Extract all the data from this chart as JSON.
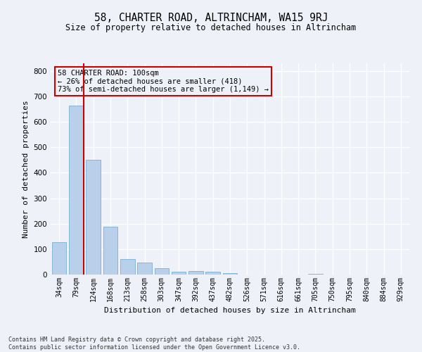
{
  "title1": "58, CHARTER ROAD, ALTRINCHAM, WA15 9RJ",
  "title2": "Size of property relative to detached houses in Altrincham",
  "xlabel": "Distribution of detached houses by size in Altrincham",
  "ylabel": "Number of detached properties",
  "categories": [
    "34sqm",
    "79sqm",
    "124sqm",
    "168sqm",
    "213sqm",
    "258sqm",
    "303sqm",
    "347sqm",
    "392sqm",
    "437sqm",
    "482sqm",
    "526sqm",
    "571sqm",
    "616sqm",
    "661sqm",
    "705sqm",
    "750sqm",
    "795sqm",
    "840sqm",
    "884sqm",
    "929sqm"
  ],
  "values": [
    128,
    665,
    450,
    188,
    62,
    47,
    26,
    12,
    15,
    10,
    6,
    1,
    0,
    0,
    0,
    4,
    0,
    0,
    0,
    0,
    0
  ],
  "bar_color": "#b8d0ea",
  "bar_edge_color": "#7aaed4",
  "vline_color": "#cc0000",
  "vline_x": 1.42,
  "annotation_text": "58 CHARTER ROAD: 100sqm\n← 26% of detached houses are smaller (418)\n73% of semi-detached houses are larger (1,149) →",
  "annotation_box_edge": "#cc0000",
  "ylim": [
    0,
    830
  ],
  "yticks": [
    0,
    100,
    200,
    300,
    400,
    500,
    600,
    700,
    800
  ],
  "bg_color": "#eef2f8",
  "grid_color": "#ffffff",
  "footnote": "Contains HM Land Registry data © Crown copyright and database right 2025.\nContains public sector information licensed under the Open Government Licence v3.0."
}
